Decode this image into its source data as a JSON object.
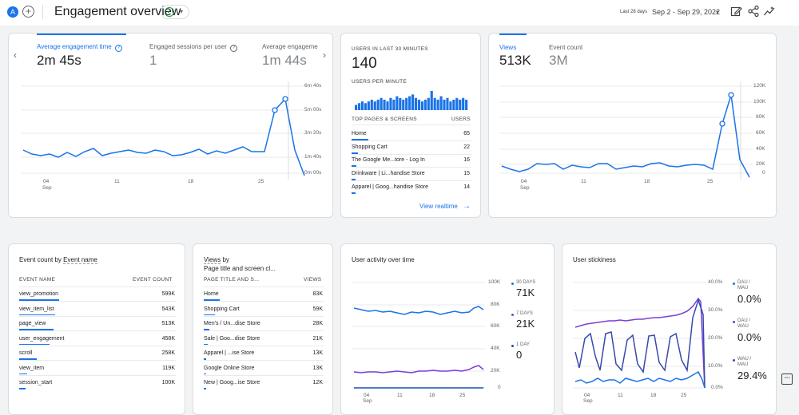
{
  "header": {
    "avatar_letter": "A",
    "add_symbol": "+",
    "title": "Engagement overview",
    "check_symbol": "✓",
    "caret_symbol": "▾",
    "date_label": "Last 28 days",
    "date_range": "Sep 2 - Sep 29, 2022",
    "icons": [
      "edit-icon",
      "share-icon",
      "insights-icon"
    ]
  },
  "engagement": {
    "tabs": [
      {
        "label": "Average engagement time",
        "value": "2m 45s",
        "help": "?"
      },
      {
        "label": "Engaged sessions per user",
        "value": "1",
        "help": "?"
      },
      {
        "label": "Average engageme",
        "value": "1m 44s"
      }
    ],
    "prev_symbol": "‹",
    "next_symbol": "›",
    "y_ticks": [
      "6m 40s",
      "5m 00s",
      "3m 20s",
      "1m 40s",
      "0m 00s"
    ],
    "x_ticks": [
      "04",
      "11",
      "18",
      "25"
    ],
    "x_month": "Sep"
  },
  "realtime": {
    "users_label": "USERS IN LAST 30 MINUTES",
    "users_value": "140",
    "per_minute_label": "USERS PER MINUTE",
    "per_minute_bars": [
      3,
      4,
      5,
      4,
      5,
      6,
      5,
      6,
      7,
      6,
      5,
      7,
      6,
      8,
      7,
      6,
      7,
      8,
      9,
      7,
      6,
      5,
      6,
      7,
      11,
      7,
      6,
      8,
      6,
      7,
      5,
      6,
      7,
      6,
      7,
      6
    ],
    "table_header": "TOP PAGES & SCREENS",
    "table_header_right": "USERS",
    "rows": [
      {
        "name": "Home",
        "value": "65"
      },
      {
        "name": "Shopping Cart",
        "value": "22"
      },
      {
        "name": "The Google Me...tore - Log In",
        "value": "16"
      },
      {
        "name": "Drinkware | Li...handise Store",
        "value": "15"
      },
      {
        "name": "Apparel | Goog...handise Store",
        "value": "14"
      }
    ],
    "link": "View realtime",
    "link_arrow": "→"
  },
  "views": {
    "tabs": [
      {
        "label": "Views",
        "value": "513K"
      },
      {
        "label": "Event count",
        "value": "3M"
      }
    ],
    "y_ticks": [
      "120K",
      "100K",
      "80K",
      "60K",
      "40K",
      "20K",
      "0"
    ],
    "x_ticks": [
      "04",
      "11",
      "18",
      "25"
    ],
    "x_month": "Sep"
  },
  "event_count": {
    "title_a": "Event count by",
    "title_b": "Event name",
    "col1": "EVENT NAME",
    "col2": "EVENT COUNT",
    "rows": [
      {
        "name": "view_promotion",
        "value": "599K"
      },
      {
        "name": "view_item_list",
        "value": "543K"
      },
      {
        "name": "page_view",
        "value": "513K"
      },
      {
        "name": "user_engagement",
        "value": "458K"
      },
      {
        "name": "scroll",
        "value": "258K"
      },
      {
        "name": "view_item",
        "value": "119K"
      },
      {
        "name": "session_start",
        "value": "100K"
      }
    ]
  },
  "views_by_page": {
    "title_a": "Views",
    "title_b": "by",
    "title_c": "Page title and screen cl...",
    "col1": "PAGE TITLE AND S...",
    "col2": "VIEWS",
    "rows": [
      {
        "name": "Home",
        "value": "83K"
      },
      {
        "name": "Shopping Cart",
        "value": "59K"
      },
      {
        "name": "Men's / Un...dise Store",
        "value": "28K"
      },
      {
        "name": "Sale | Goo...dise Store",
        "value": "21K"
      },
      {
        "name": "Apparel | ...ise Store",
        "value": "13K"
      },
      {
        "name": "Google Online Store",
        "value": "13K"
      },
      {
        "name": "New | Goog...ise Store",
        "value": "12K"
      }
    ]
  },
  "user_activity": {
    "title": "User activity over time",
    "y_ticks": [
      "100K",
      "80K",
      "60K",
      "40K",
      "20K",
      "0"
    ],
    "x_ticks": [
      "04",
      "11",
      "18",
      "25"
    ],
    "x_month": "Sep",
    "legend": [
      {
        "label": "30 DAYS",
        "value": "71K",
        "color": "#1a73e8"
      },
      {
        "label": "7 DAYS",
        "value": "21K",
        "color": "#7b3fd6"
      },
      {
        "label": "1 DAY",
        "value": "0",
        "color": "#1a4fb0"
      }
    ]
  },
  "stickiness": {
    "title": "User stickiness",
    "y_ticks": [
      "40.0%",
      "30.0%",
      "20.0%",
      "10.0%",
      "0.0%"
    ],
    "x_ticks": [
      "04",
      "11",
      "18",
      "25"
    ],
    "x_month": "Sep",
    "legend": [
      {
        "label1": "DAU /",
        "label2": "MAU",
        "value": "0.0%",
        "color": "#1a73e8"
      },
      {
        "label1": "DAU /",
        "label2": "WAU",
        "value": "0.0%",
        "color": "#5a3fd6"
      },
      {
        "label1": "WAU /",
        "label2": "MAU",
        "value": "29.4%",
        "color": "#3949ab"
      }
    ]
  },
  "colors": {
    "accent": "#1a73e8",
    "purple": "#7b3fd6",
    "positive": "#1e8e3e"
  }
}
